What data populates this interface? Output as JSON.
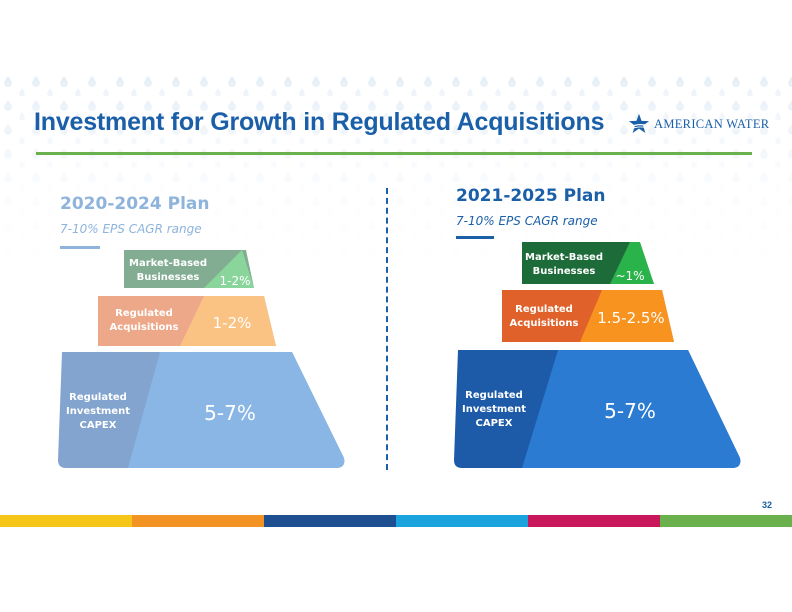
{
  "slide": {
    "title": "Investment for Growth in Regulated Acquisitions",
    "logo_text": "American Water",
    "page_number": "32"
  },
  "plans": [
    {
      "title": "2020-2024 Plan",
      "subtitle": "7-10% EPS CAGR range",
      "faded": true,
      "tiers": [
        {
          "label_line1": "Market-Based",
          "label_line2": "Businesses",
          "value": "1-2%"
        },
        {
          "label_line1": "Regulated",
          "label_line2": "Acquisitions",
          "value": "1-2%"
        },
        {
          "label_line1": "Regulated",
          "label_line2": "Investment",
          "label_line3": "CAPEX",
          "value": "5-7%"
        }
      ]
    },
    {
      "title": "2021-2025 Plan",
      "subtitle": "7-10% EPS CAGR range",
      "faded": false,
      "tiers": [
        {
          "label_line1": "Market-Based",
          "label_line2": "Businesses",
          "value": "~1%"
        },
        {
          "label_line1": "Regulated",
          "label_line2": "Acquisitions",
          "value": "1.5-2.5%"
        },
        {
          "label_line1": "Regulated",
          "label_line2": "Investment",
          "label_line3": "CAPEX",
          "value": "5-7%"
        }
      ]
    }
  ],
  "colors": {
    "title_blue": "#1a5fa8",
    "accent_green": "#6ab04c",
    "footer": [
      "#f5c518",
      "#f39323",
      "#1d4f91",
      "#1aa3dc",
      "#c8175a",
      "#6ab04c"
    ]
  }
}
